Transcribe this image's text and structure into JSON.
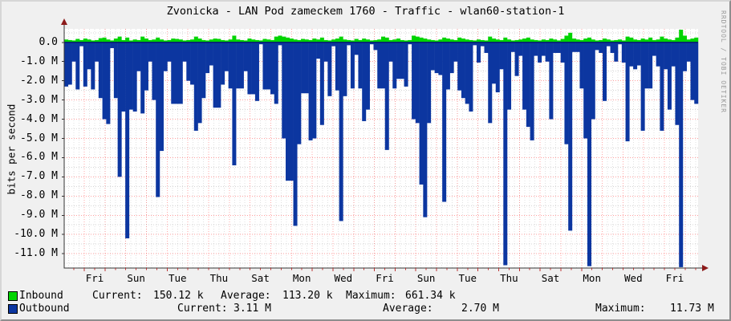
{
  "title": "Zvonicka - LAN Pod zameckem 1760 - Traffic - wlan60-station-1",
  "watermark": "RRDTOOL / TOBI OETIKER",
  "y_axis": {
    "title": "bits per second",
    "tick_labels": [
      "0.0",
      "-1.0 M",
      "-2.0 M",
      "-3.0 M",
      "-4.0 M",
      "-5.0 M",
      "-6.0 M",
      "-7.0 M",
      "-8.0 M",
      "-9.0 M",
      "-10.0 M",
      "-11.0 M"
    ]
  },
  "x_axis": {
    "tick_labels": [
      "Fri",
      "Sun",
      "Tue",
      "Thu",
      "Sat",
      "Mon",
      "Wed",
      "Fri",
      "Sun",
      "Tue",
      "Thu",
      "Sat",
      "Mon",
      "Wed",
      "Fri"
    ]
  },
  "legend": {
    "current_label": "Current:",
    "average_label": "Average:",
    "maximum_label": "Maximum:"
  },
  "chart_data": {
    "type": "area",
    "title": "Zvonicka - LAN Pod zameckem 1760 - Traffic - wlan60-station-1",
    "xlabel": "",
    "ylabel": "bits per second",
    "ylim": [
      -11.75,
      0.7
    ],
    "grid": true,
    "unit": "Mbit/s",
    "x_tick_labels": [
      "Fri",
      "Sun",
      "Tue",
      "Thu",
      "Sat",
      "Mon",
      "Wed",
      "Fri",
      "Sun",
      "Tue",
      "Thu",
      "Sat",
      "Mon",
      "Wed",
      "Fri"
    ],
    "series": [
      {
        "name": "Inbound",
        "color": "#00d400",
        "current": "150.12 k",
        "average": "113.20 k",
        "maximum": "661.34 k",
        "values": [
          0.15,
          0.12,
          0.1,
          0.18,
          0.12,
          0.2,
          0.15,
          0.1,
          0.12,
          0.22,
          0.25,
          0.15,
          0.1,
          0.2,
          0.3,
          0.12,
          0.25,
          0.1,
          0.15,
          0.12,
          0.3,
          0.2,
          0.12,
          0.15,
          0.25,
          0.15,
          0.1,
          0.12,
          0.2,
          0.18,
          0.15,
          0.1,
          0.12,
          0.15,
          0.3,
          0.2,
          0.12,
          0.1,
          0.15,
          0.2,
          0.18,
          0.12,
          0.1,
          0.15,
          0.35,
          0.15,
          0.12,
          0.1,
          0.2,
          0.15,
          0.12,
          0.1,
          0.18,
          0.15,
          0.12,
          0.3,
          0.35,
          0.3,
          0.25,
          0.2,
          0.15,
          0.12,
          0.18,
          0.15,
          0.12,
          0.2,
          0.15,
          0.25,
          0.12,
          0.1,
          0.15,
          0.2,
          0.3,
          0.15,
          0.12,
          0.1,
          0.18,
          0.12,
          0.2,
          0.15,
          0.1,
          0.12,
          0.15,
          0.3,
          0.25,
          0.12,
          0.15,
          0.2,
          0.12,
          0.1,
          0.12,
          0.35,
          0.3,
          0.25,
          0.2,
          0.15,
          0.12,
          0.1,
          0.15,
          0.25,
          0.2,
          0.15,
          0.12,
          0.25,
          0.2,
          0.15,
          0.12,
          0.1,
          0.15,
          0.12,
          0.1,
          0.3,
          0.2,
          0.15,
          0.12,
          0.25,
          0.15,
          0.1,
          0.12,
          0.15,
          0.2,
          0.25,
          0.15,
          0.12,
          0.1,
          0.15,
          0.12,
          0.2,
          0.15,
          0.1,
          0.18,
          0.35,
          0.5,
          0.2,
          0.15,
          0.12,
          0.2,
          0.25,
          0.15,
          0.1,
          0.12,
          0.2,
          0.15,
          0.1,
          0.12,
          0.15,
          0.1,
          0.3,
          0.25,
          0.15,
          0.12,
          0.2,
          0.15,
          0.25,
          0.12,
          0.15,
          0.3,
          0.2,
          0.15,
          0.12,
          0.25,
          0.66,
          0.35,
          0.15,
          0.2,
          0.25
        ]
      },
      {
        "name": "Outbound",
        "color": "#0c36a0",
        "current": "3.11 M",
        "average": "2.70 M",
        "maximum": "11.73 M",
        "values": [
          -2.3,
          -2.2,
          -1.0,
          -2.45,
          -0.2,
          -2.3,
          -1.4,
          -2.45,
          -1.0,
          -2.9,
          -4.0,
          -4.25,
          -0.3,
          -2.9,
          -7.0,
          -3.6,
          -10.2,
          -3.5,
          -3.6,
          -1.5,
          -3.7,
          -2.5,
          -1.0,
          -3.0,
          -8.05,
          -5.65,
          -1.5,
          -1.0,
          -3.2,
          -3.2,
          -3.2,
          -1.0,
          -2.0,
          -2.2,
          -4.6,
          -4.2,
          -2.9,
          -1.6,
          -1.2,
          -3.4,
          -3.4,
          -2.2,
          -1.5,
          -2.4,
          -6.4,
          -2.4,
          -2.4,
          -1.5,
          -2.7,
          -2.7,
          -3.05,
          -0.1,
          -2.45,
          -2.45,
          -2.7,
          -3.2,
          -0.15,
          -5.0,
          -7.2,
          -7.2,
          -9.55,
          -5.3,
          -2.65,
          -2.65,
          -5.1,
          -5.0,
          -0.85,
          -4.3,
          -1.0,
          -2.8,
          -0.2,
          -2.5,
          -9.3,
          -2.8,
          -0.15,
          -2.4,
          -0.65,
          -2.4,
          -4.1,
          -3.5,
          -0.1,
          -0.4,
          -2.4,
          -2.4,
          -5.6,
          -1.0,
          -2.4,
          -1.9,
          -1.9,
          -2.3,
          -0.1,
          -4.0,
          -4.2,
          -7.4,
          -9.1,
          -4.2,
          -1.45,
          -1.6,
          -1.7,
          -8.3,
          -2.45,
          -1.6,
          -1.0,
          -2.5,
          -2.9,
          -3.2,
          -3.6,
          -0.15,
          -1.05,
          -0.2,
          -0.55,
          -4.2,
          -2.15,
          -2.6,
          -1.4,
          -11.6,
          -3.5,
          -0.5,
          -1.75,
          -0.7,
          -3.5,
          -4.4,
          -5.1,
          -0.7,
          -1.05,
          -0.7,
          -1.0,
          -4.0,
          -0.55,
          -0.55,
          -1.05,
          -5.3,
          -9.8,
          -0.5,
          -0.5,
          -2.4,
          -5.0,
          -11.65,
          -4.0,
          -0.4,
          -0.55,
          -3.05,
          -0.2,
          -0.55,
          -1.0,
          -0.1,
          -1.05,
          -5.15,
          -1.25,
          -1.4,
          -1.2,
          -4.6,
          -2.4,
          -2.4,
          -0.7,
          -1.25,
          -4.6,
          -1.4,
          -3.5,
          -1.25,
          -4.3,
          -11.7,
          -1.5,
          -1.0,
          -3.0,
          -3.2
        ]
      }
    ],
    "colors": {
      "grid_major": "#ff6060",
      "grid_minor": "#aaaaaa",
      "axis": "#333333",
      "arrow": "#8c1a1a",
      "zero_line": "#06246e",
      "canvas": "#ffffff",
      "background": "#f0f0f0"
    }
  }
}
